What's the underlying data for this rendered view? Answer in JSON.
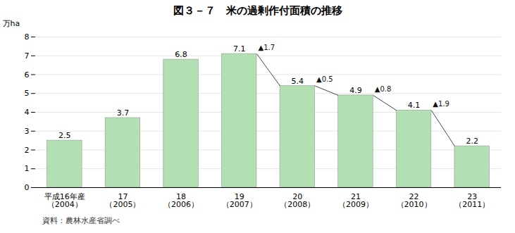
{
  "chart_data": {
    "type": "bar",
    "title": "図３－７　米の過剰作付面積の推移",
    "ylabel": "万ha",
    "categories": [
      "平成16年産\n（2004）",
      "17\n（2005）",
      "18\n（2006）",
      "19\n（2007）",
      "20\n（2008）",
      "21\n（2009）",
      "22\n（2010）",
      "23\n（2011）"
    ],
    "values": [
      2.5,
      3.7,
      6.8,
      7.1,
      5.4,
      4.9,
      4.1,
      2.2
    ],
    "color": "#b2e0b2",
    "data_labels": true,
    "annotations": [
      {
        "text": "▲1.7",
        "from": "19\n（2007）",
        "to": "20\n（2008）"
      },
      {
        "text": "▲0.5",
        "from": "20\n（2008）",
        "to": "21\n（2009）"
      },
      {
        "text": "▲0.8",
        "from": "21\n（2009）",
        "to": "22\n（2010）"
      },
      {
        "text": "▲1.9",
        "from": "22\n（2010）",
        "to": "23\n（2011）"
      }
    ],
    "source": "資料：農林水産省調べ",
    "ylim": [
      0,
      8
    ],
    "yticks": [
      0,
      1,
      2,
      3,
      4,
      5,
      6,
      7,
      8
    ],
    "grid": true
  }
}
